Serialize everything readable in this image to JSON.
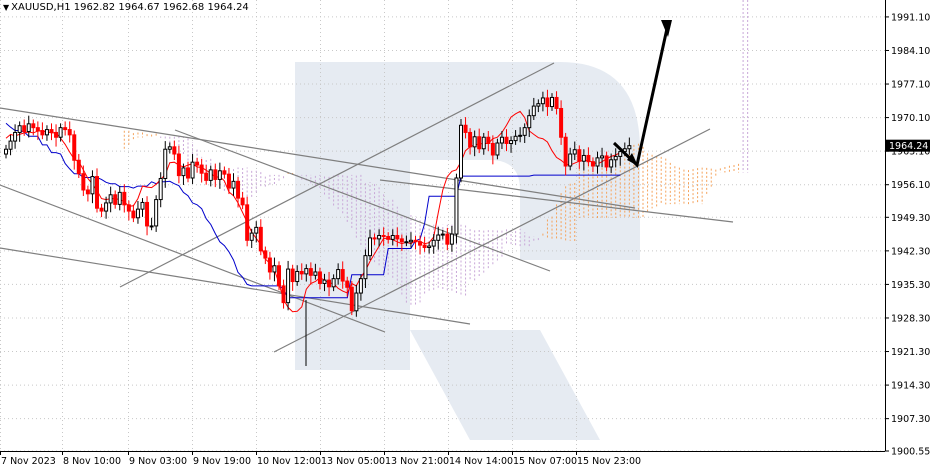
{
  "header": {
    "symbol": "XAUUSD,H1",
    "open": "1962.82",
    "high": "1964.67",
    "low": "1962.68",
    "close": "1964.24",
    "menu_icon": "triangle-down-icon"
  },
  "colors": {
    "bull": "#000000",
    "bear": "#ff0000",
    "tenkan": "#ff0000",
    "kijun": "#0000cc",
    "cloud_bull": "#f5a35c",
    "cloud_bear": "#c9a8d8",
    "trendline": "#7f7f7f",
    "arrow": "#000000",
    "grid": "#c8c8c8",
    "price_tag_bg": "#000000",
    "price_tag_fg": "#ffffff",
    "watermark": "#dde4ee"
  },
  "chart_data": {
    "type": "candlestick",
    "symbol": "XAUUSD",
    "timeframe": "H1",
    "ylim": [
      1900.55,
      1994.63
    ],
    "yticks": [
      1991.1,
      1984.1,
      1977.1,
      1970.1,
      1963.1,
      1956.1,
      1949.3,
      1942.3,
      1935.3,
      1928.3,
      1921.3,
      1914.3,
      1907.3,
      1900.55
    ],
    "ytick_labels": [
      "1991.10",
      "1984.10",
      "1977.10",
      "1970.10",
      "1963.10",
      "1956.10",
      "1949.30",
      "1942.30",
      "1935.30",
      "1928.30",
      "1921.30",
      "1914.30",
      "1907.30",
      "1900.55"
    ],
    "xtick_labels": [
      "7 Nov 2023",
      "8 Nov 10:00",
      "9 Nov 03:00",
      "9 Nov 19:00",
      "10 Nov 12:00",
      "13 Nov 05:00",
      "13 Nov 21:00",
      "14 Nov 14:00",
      "15 Nov 07:00",
      "15 Nov 23:00"
    ],
    "current_price": "1964.24",
    "closes": [
      1963.5,
      1965.2,
      1967.0,
      1968.4,
      1967.2,
      1968.8,
      1968.0,
      1967.4,
      1966.5,
      1967.6,
      1967.0,
      1966.0,
      1968.0,
      1967.6,
      1966.5,
      1961.2,
      1958.4,
      1955.0,
      1954.2,
      1957.8,
      1951.2,
      1950.6,
      1952.3,
      1954.0,
      1952.0,
      1954.5,
      1951.9,
      1950.6,
      1949.2,
      1951.0,
      1952.4,
      1947.5,
      1947.5,
      1953.0,
      1957.4,
      1963.5,
      1964.0,
      1962.5,
      1958.0,
      1959.6,
      1957.5,
      1960.8,
      1960.2,
      1958.5,
      1957.0,
      1959.2,
      1957.2,
      1959.0,
      1958.3,
      1955.4,
      1956.8,
      1953.3,
      1951.9,
      1944.5,
      1946.0,
      1947.2,
      1942.3,
      1940.8,
      1937.9,
      1939.2,
      1935.0,
      1931.5,
      1938.5,
      1935.9,
      1938.0,
      1937.5,
      1938.6,
      1937.2,
      1937.9,
      1935.5,
      1936.2,
      1934.8,
      1936.5,
      1938.4,
      1936.0,
      1934.7,
      1929.8,
      1933.5,
      1936.5,
      1941.3,
      1945.0,
      1944.8,
      1945.5,
      1945.3,
      1944.7,
      1945.5,
      1944.8,
      1944.2,
      1944.2,
      1944.5,
      1944.2,
      1943.5,
      1943.0,
      1943.3,
      1944.5,
      1945.6,
      1945.8,
      1943.7,
      1945.8,
      1957.5,
      1968.5,
      1967.0,
      1964.0,
      1966.1,
      1963.6,
      1966.0,
      1964.7,
      1962.3,
      1964.8,
      1966.0,
      1964.7,
      1965.3,
      1966.2,
      1966.4,
      1968.0,
      1970.5,
      1972.5,
      1973.0,
      1974.2,
      1972.4,
      1974.3,
      1972.0,
      1966.0,
      1960.0,
      1962.5,
      1963.4,
      1961.0,
      1962.2,
      1960.9,
      1960.0,
      1961.7,
      1962.1,
      1959.8,
      1961.3,
      1962.0,
      1963.0,
      1963.6,
      1964.24
    ],
    "tenkan": [
      1965.8,
      1966.6,
      1966.3,
      1966.6,
      1966.9,
      1967.1,
      1966.9,
      1967.3,
      1967.3,
      1967.1,
      1966.9,
      1966.9,
      1965.8,
      1964.5,
      1962.9,
      1961.4,
      1960.9,
      1959.2,
      1957.4,
      1956.2,
      1954.9,
      1953.2,
      1953.0,
      1953.2,
      1953.2,
      1953.0,
      1952.6,
      1951.6,
      1951.7,
      1953.2,
      1955.8,
      1955.6,
      1955.5,
      1956.2,
      1957.2,
      1958.2,
      1960.7,
      1960.8,
      1960.2,
      1959.8,
      1960.2,
      1960.5,
      1959.8,
      1959.7,
      1959.1,
      1958.5,
      1957.6,
      1957.8,
      1956.9,
      1954.6,
      1953.8,
      1952.3,
      1950.3,
      1948.3,
      1946.2,
      1944.9,
      1943.6,
      1940.6,
      1939.7,
      1938.4,
      1935.5,
      1932.1,
      1930.5,
      1929.6,
      1929.7,
      1930.6,
      1934.3,
      1935.5,
      1935.9,
      1936.7,
      1936.2,
      1935.6,
      1935.5,
      1934.5,
      1933.9,
      1933.5,
      1935.5,
      1935.0,
      1936.8,
      1938.2,
      1940.1,
      1941.7,
      1943.3,
      1944.9,
      1944.9,
      1944.6,
      1944.2,
      1943.8,
      1944.1,
      1943.8,
      1944.4,
      1944.3,
      1943.8,
      1944.0,
      1945.2,
      1950.3,
      1955.0,
      1957.8,
      1958.9,
      1959.2,
      1960.9,
      1963.2,
      1964.0,
      1964.4,
      1964.6,
      1964.7,
      1964.7,
      1965.7,
      1966.0,
      1967.0,
      1968.5,
      1970.2,
      1970.9,
      1971.4,
      1970.1,
      1967.3,
      1966.6,
      1965.9,
      1965.7,
      1965.0,
      1963.2,
      1961.8,
      1961.2,
      1960.4,
      1960.2,
      1960.6,
      1961.0,
      1961.2,
      1961.1,
      1960.8,
      1960.4,
      1960.9,
      1961.5,
      1962.0,
      1962.3,
      1962.8
    ],
    "kijun": [
      1968.9,
      1968.1,
      1967.4,
      1967.4,
      1967.1,
      1966.2,
      1966.2,
      1966.2,
      1964.4,
      1964.4,
      1962.8,
      1962.8,
      1962.5,
      1960.5,
      1959.4,
      1958.4,
      1958.4,
      1957.6,
      1957.6,
      1957.6,
      1957.6,
      1957.2,
      1956.6,
      1956.3,
      1956.3,
      1955.7,
      1955.7,
      1955.7,
      1955.4,
      1955.8,
      1955.8,
      1955.8,
      1956.7,
      1956.3,
      1956.7,
      1956.7,
      1956.8,
      1956.3,
      1955.9,
      1954.5,
      1953.8,
      1952.3,
      1951.9,
      1951.1,
      1949.0,
      1947.8,
      1945.9,
      1944.2,
      1943.4,
      1942.1,
      1940.4,
      1937.8,
      1936.8,
      1935.3,
      1935.0,
      1935.0,
      1935.0,
      1935.0,
      1935.0,
      1935.0,
      1935.0,
      1934.3,
      1932.5,
      1932.5,
      1932.5,
      1932.5,
      1932.5,
      1932.5,
      1932.5,
      1932.5,
      1932.5,
      1932.5,
      1932.5,
      1932.5,
      1932.5,
      1932.5,
      1937.3,
      1937.3,
      1937.3,
      1937.3,
      1937.3,
      1937.3,
      1937.3,
      1937.3,
      1942.8,
      1942.8,
      1942.8,
      1942.8,
      1942.8,
      1942.8,
      1944.4,
      1944.8,
      1948.0,
      1953.7,
      1953.7,
      1953.7,
      1953.7,
      1953.7,
      1953.7,
      1953.7,
      1957.9,
      1957.9,
      1957.9,
      1957.9,
      1957.9,
      1957.9,
      1957.9,
      1957.9,
      1957.9,
      1957.9,
      1957.9,
      1957.9,
      1957.9,
      1957.9,
      1957.9,
      1957.9,
      1958.1,
      1958.1,
      1958.1,
      1958.1,
      1958.1,
      1958.1,
      1958.1,
      1958.1,
      1958.1,
      1958.1,
      1958.1,
      1958.1,
      1958.1,
      1958.1,
      1958.1,
      1958.1,
      1958.1,
      1958.1,
      1958.1,
      1958.1
    ]
  },
  "watermark_icon": "broker-logo-watermark-icon"
}
